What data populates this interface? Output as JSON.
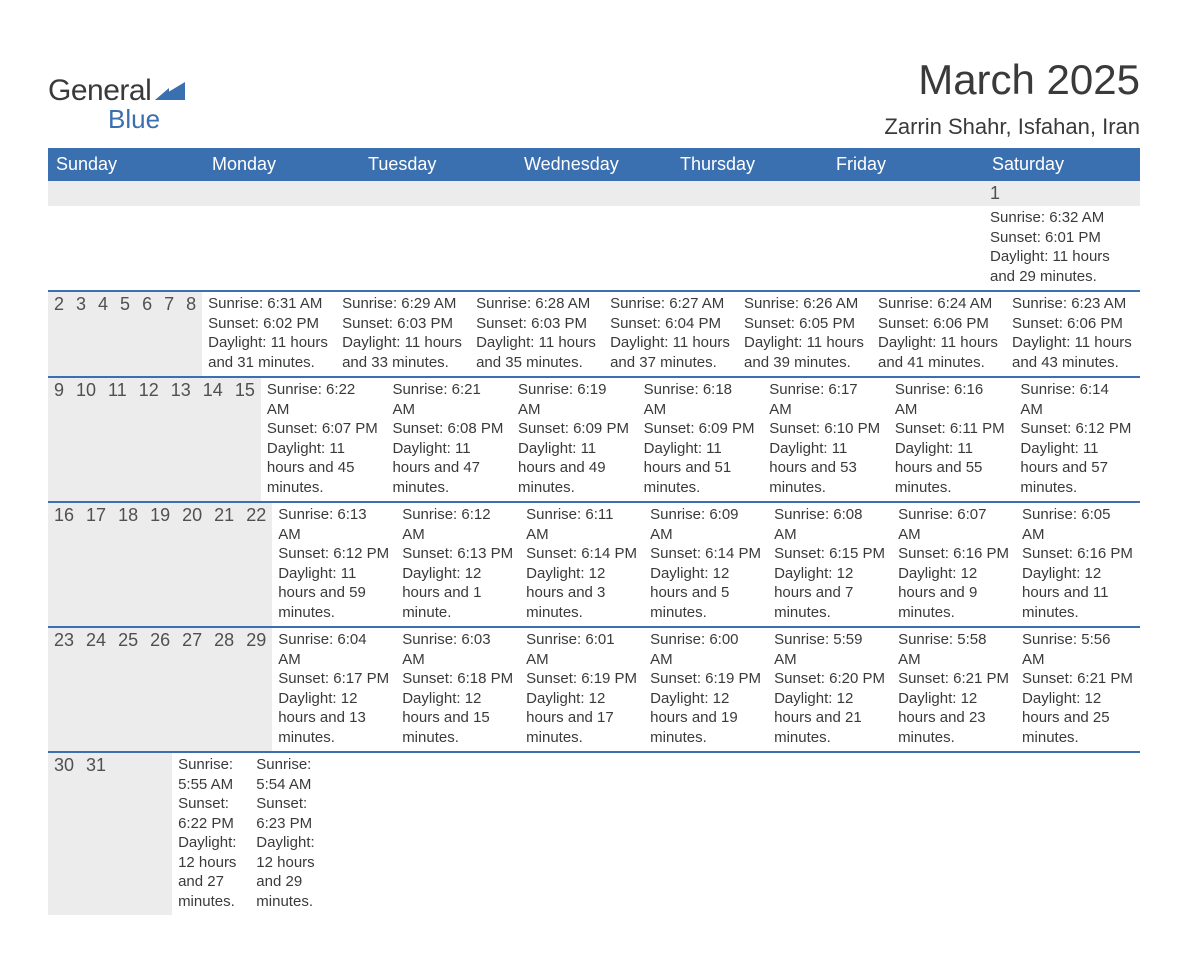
{
  "logo": {
    "line1": "General",
    "line2": "Blue",
    "accent_color": "#3a6fb0"
  },
  "title": "March 2025",
  "subtitle": "Zarrin Shahr, Isfahan, Iran",
  "colors": {
    "header_bg": "#3a6fb0",
    "header_text": "#ffffff",
    "daynum_bg": "#ececec",
    "row_border": "#3a6fb0",
    "text": "#3a3a3a"
  },
  "daysOfWeek": [
    "Sunday",
    "Monday",
    "Tuesday",
    "Wednesday",
    "Thursday",
    "Friday",
    "Saturday"
  ],
  "weeks": [
    [
      {
        "day": "",
        "lines": []
      },
      {
        "day": "",
        "lines": []
      },
      {
        "day": "",
        "lines": []
      },
      {
        "day": "",
        "lines": []
      },
      {
        "day": "",
        "lines": []
      },
      {
        "day": "",
        "lines": []
      },
      {
        "day": "1",
        "lines": [
          "Sunrise: 6:32 AM",
          "Sunset: 6:01 PM",
          "Daylight: 11 hours and 29 minutes."
        ]
      }
    ],
    [
      {
        "day": "2",
        "lines": [
          "Sunrise: 6:31 AM",
          "Sunset: 6:02 PM",
          "Daylight: 11 hours and 31 minutes."
        ]
      },
      {
        "day": "3",
        "lines": [
          "Sunrise: 6:29 AM",
          "Sunset: 6:03 PM",
          "Daylight: 11 hours and 33 minutes."
        ]
      },
      {
        "day": "4",
        "lines": [
          "Sunrise: 6:28 AM",
          "Sunset: 6:03 PM",
          "Daylight: 11 hours and 35 minutes."
        ]
      },
      {
        "day": "5",
        "lines": [
          "Sunrise: 6:27 AM",
          "Sunset: 6:04 PM",
          "Daylight: 11 hours and 37 minutes."
        ]
      },
      {
        "day": "6",
        "lines": [
          "Sunrise: 6:26 AM",
          "Sunset: 6:05 PM",
          "Daylight: 11 hours and 39 minutes."
        ]
      },
      {
        "day": "7",
        "lines": [
          "Sunrise: 6:24 AM",
          "Sunset: 6:06 PM",
          "Daylight: 11 hours and 41 minutes."
        ]
      },
      {
        "day": "8",
        "lines": [
          "Sunrise: 6:23 AM",
          "Sunset: 6:06 PM",
          "Daylight: 11 hours and 43 minutes."
        ]
      }
    ],
    [
      {
        "day": "9",
        "lines": [
          "Sunrise: 6:22 AM",
          "Sunset: 6:07 PM",
          "Daylight: 11 hours and 45 minutes."
        ]
      },
      {
        "day": "10",
        "lines": [
          "Sunrise: 6:21 AM",
          "Sunset: 6:08 PM",
          "Daylight: 11 hours and 47 minutes."
        ]
      },
      {
        "day": "11",
        "lines": [
          "Sunrise: 6:19 AM",
          "Sunset: 6:09 PM",
          "Daylight: 11 hours and 49 minutes."
        ]
      },
      {
        "day": "12",
        "lines": [
          "Sunrise: 6:18 AM",
          "Sunset: 6:09 PM",
          "Daylight: 11 hours and 51 minutes."
        ]
      },
      {
        "day": "13",
        "lines": [
          "Sunrise: 6:17 AM",
          "Sunset: 6:10 PM",
          "Daylight: 11 hours and 53 minutes."
        ]
      },
      {
        "day": "14",
        "lines": [
          "Sunrise: 6:16 AM",
          "Sunset: 6:11 PM",
          "Daylight: 11 hours and 55 minutes."
        ]
      },
      {
        "day": "15",
        "lines": [
          "Sunrise: 6:14 AM",
          "Sunset: 6:12 PM",
          "Daylight: 11 hours and 57 minutes."
        ]
      }
    ],
    [
      {
        "day": "16",
        "lines": [
          "Sunrise: 6:13 AM",
          "Sunset: 6:12 PM",
          "Daylight: 11 hours and 59 minutes."
        ]
      },
      {
        "day": "17",
        "lines": [
          "Sunrise: 6:12 AM",
          "Sunset: 6:13 PM",
          "Daylight: 12 hours and 1 minute."
        ]
      },
      {
        "day": "18",
        "lines": [
          "Sunrise: 6:11 AM",
          "Sunset: 6:14 PM",
          "Daylight: 12 hours and 3 minutes."
        ]
      },
      {
        "day": "19",
        "lines": [
          "Sunrise: 6:09 AM",
          "Sunset: 6:14 PM",
          "Daylight: 12 hours and 5 minutes."
        ]
      },
      {
        "day": "20",
        "lines": [
          "Sunrise: 6:08 AM",
          "Sunset: 6:15 PM",
          "Daylight: 12 hours and 7 minutes."
        ]
      },
      {
        "day": "21",
        "lines": [
          "Sunrise: 6:07 AM",
          "Sunset: 6:16 PM",
          "Daylight: 12 hours and 9 minutes."
        ]
      },
      {
        "day": "22",
        "lines": [
          "Sunrise: 6:05 AM",
          "Sunset: 6:16 PM",
          "Daylight: 12 hours and 11 minutes."
        ]
      }
    ],
    [
      {
        "day": "23",
        "lines": [
          "Sunrise: 6:04 AM",
          "Sunset: 6:17 PM",
          "Daylight: 12 hours and 13 minutes."
        ]
      },
      {
        "day": "24",
        "lines": [
          "Sunrise: 6:03 AM",
          "Sunset: 6:18 PM",
          "Daylight: 12 hours and 15 minutes."
        ]
      },
      {
        "day": "25",
        "lines": [
          "Sunrise: 6:01 AM",
          "Sunset: 6:19 PM",
          "Daylight: 12 hours and 17 minutes."
        ]
      },
      {
        "day": "26",
        "lines": [
          "Sunrise: 6:00 AM",
          "Sunset: 6:19 PM",
          "Daylight: 12 hours and 19 minutes."
        ]
      },
      {
        "day": "27",
        "lines": [
          "Sunrise: 5:59 AM",
          "Sunset: 6:20 PM",
          "Daylight: 12 hours and 21 minutes."
        ]
      },
      {
        "day": "28",
        "lines": [
          "Sunrise: 5:58 AM",
          "Sunset: 6:21 PM",
          "Daylight: 12 hours and 23 minutes."
        ]
      },
      {
        "day": "29",
        "lines": [
          "Sunrise: 5:56 AM",
          "Sunset: 6:21 PM",
          "Daylight: 12 hours and 25 minutes."
        ]
      }
    ],
    [
      {
        "day": "30",
        "lines": [
          "Sunrise: 5:55 AM",
          "Sunset: 6:22 PM",
          "Daylight: 12 hours and 27 minutes."
        ]
      },
      {
        "day": "31",
        "lines": [
          "Sunrise: 5:54 AM",
          "Sunset: 6:23 PM",
          "Daylight: 12 hours and 29 minutes."
        ]
      },
      {
        "day": "",
        "lines": []
      },
      {
        "day": "",
        "lines": []
      },
      {
        "day": "",
        "lines": []
      },
      {
        "day": "",
        "lines": []
      },
      {
        "day": "",
        "lines": []
      }
    ]
  ]
}
